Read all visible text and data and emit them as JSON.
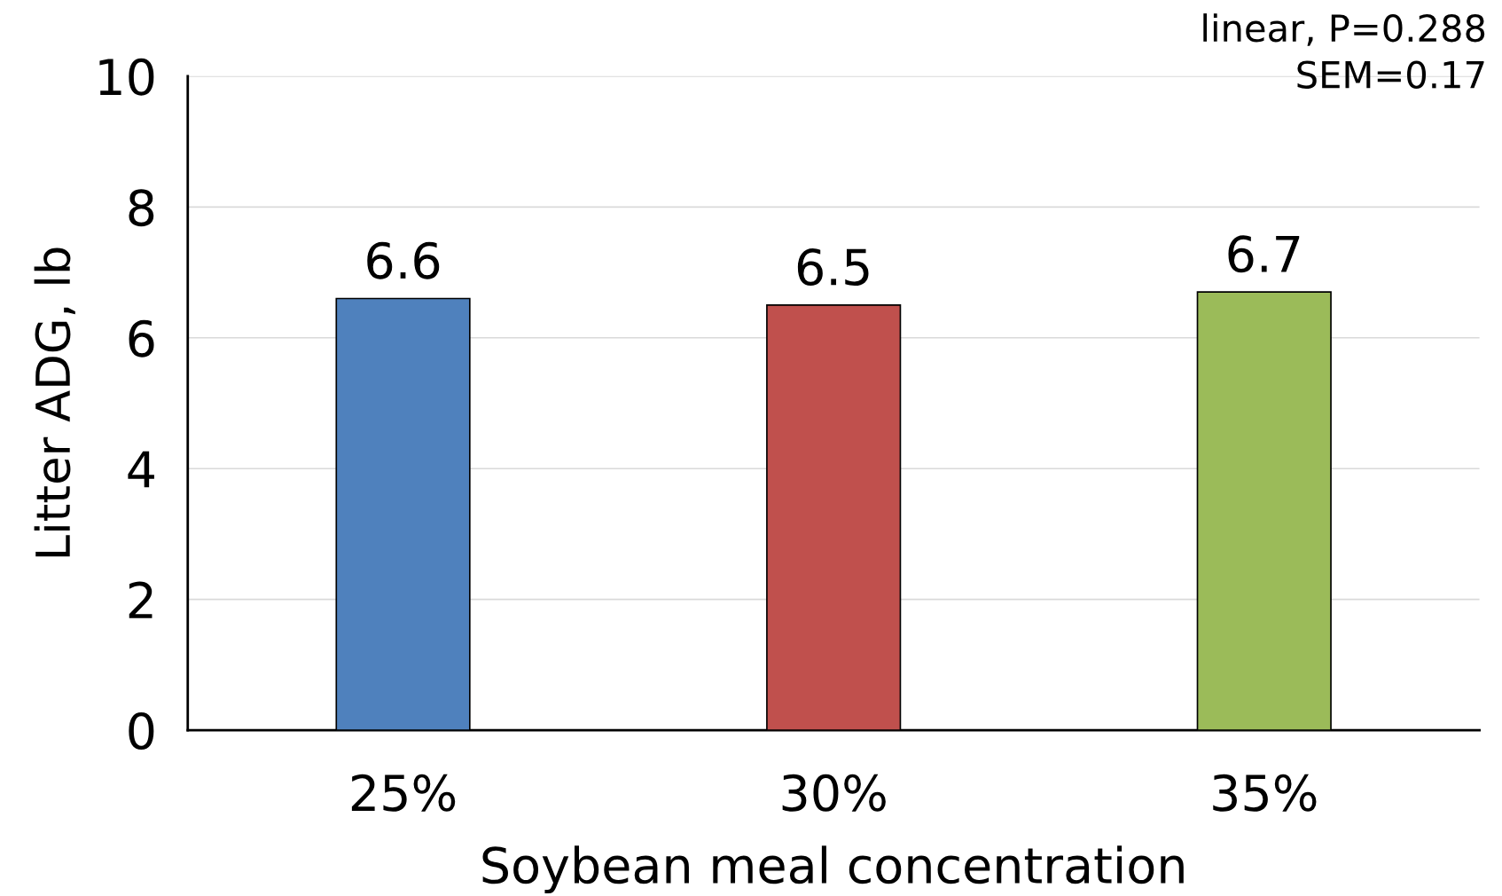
{
  "chart_data": {
    "type": "bar",
    "xlabel": "Soybean meal concentration",
    "ylabel": "Litter ADG, lb",
    "categories": [
      "25%",
      "30%",
      "35%"
    ],
    "values": [
      6.6,
      6.5,
      6.7
    ],
    "colors": [
      "#4f81bd",
      "#c0504d",
      "#9bbb59"
    ],
    "ylim": [
      0,
      10
    ],
    "yticks": [
      0,
      2,
      4,
      6,
      8,
      10
    ],
    "grid": "y",
    "data_labels": true,
    "annotations": [
      "linear, P=0.288",
      "SEM=0.17"
    ]
  }
}
